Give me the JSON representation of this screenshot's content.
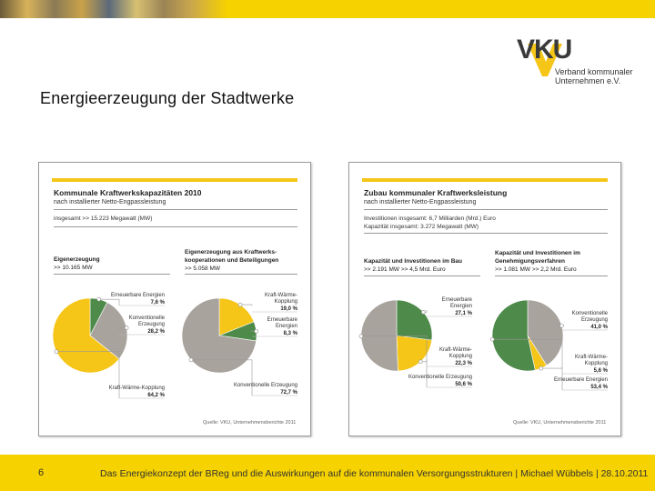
{
  "header": {
    "page_title": "Energieerzeugung der Stadtwerke"
  },
  "logo": {
    "mark": "VKU",
    "line1": "Verband kommunaler",
    "line2": "Unternehmen e.V."
  },
  "footer": {
    "slide_number": "6",
    "text": "Das Energiekonzept der BReg und die Auswirkungen auf die kommunalen Versorgungsstrukturen | Michael Wübbels | 28.10.2011"
  },
  "colors": {
    "green": "#4e8a4a",
    "gray": "#a8a39d",
    "yellow": "#f5c518",
    "accent": "#f6d200"
  },
  "left_panel": {
    "title": "Kommunale Kraftwerkskapazitäten 2010",
    "subtitle": "nach installierter Netto-Engpassleistung",
    "total": "insgesamt >> 15.223 Megawatt (MW)",
    "sec1_title": "Eigenerzeugung",
    "sec1_value": ">> 10.165 MW",
    "sec2_title1": "Eigenerzeugung aus Kraftwerks-",
    "sec2_title2": "kooperationen und Beteiligungen",
    "sec2_value": ">> 5.058 MW",
    "source": "Quelle: VKU, Unternehmensberichte 2011"
  },
  "right_panel": {
    "title": "Zubau kommunaler Kraftwerksleistung",
    "subtitle": "nach installierter Netto-Engpassleistung",
    "total1": "Investitionen insgesamt: 6,7 Milliarden (Mrd.) Euro",
    "total2": "Kapazität insgesamt: 3.272 Megawatt (MW)",
    "sec1_title": "Kapazität und Investitionen im Bau",
    "sec1_value": ">> 2.191 MW >> 4,5 Mrd. Euro",
    "sec2_title1": "Kapazität und Investitionen im",
    "sec2_title2": "Genehmigungsverfahren",
    "sec2_value": ">> 1.081 MW >> 2,2 Mrd. Euro",
    "source": "Quelle: VKU, Unternehmensberichte 2011"
  },
  "chart_data": [
    {
      "type": "pie",
      "title": "Eigenerzeugung",
      "slices": [
        {
          "name": "Erneuerbare Energien",
          "value": 7.6,
          "label": "7,6 %",
          "label_lines": [
            "Erneuerbare Energien"
          ]
        },
        {
          "name": "Konventionelle Erzeugung",
          "value": 28.2,
          "label": "28,2 %",
          "label_lines": [
            "Konventionelle",
            "Erzeugung"
          ]
        },
        {
          "name": "Kraft-Wärme-Kopplung",
          "value": 64.2,
          "label": "64,2 %",
          "label_lines": [
            "Kraft-Wärme-Kopplung"
          ]
        }
      ]
    },
    {
      "type": "pie",
      "title": "Eigenerzeugung aus Kraftwerkskooperationen und Beteiligungen",
      "slices": [
        {
          "name": "Kraft-Wärme-Kopplung",
          "value": 19.0,
          "label": "19,0 %",
          "label_lines": [
            "Kraft-Wärme-",
            "Kopplung"
          ]
        },
        {
          "name": "Erneuerbare Energien",
          "value": 8.3,
          "label": "8,3 %",
          "label_lines": [
            "Erneuerbare",
            "Energien"
          ]
        },
        {
          "name": "Konventionelle Erzeugung",
          "value": 72.7,
          "label": "72,7 %",
          "label_lines": [
            "Konventionelle Erzeugung"
          ]
        }
      ]
    },
    {
      "type": "pie",
      "title": "Kapazität und Investitionen im Bau",
      "slices": [
        {
          "name": "Erneuerbare Energien",
          "value": 27.1,
          "label": "27,1 %",
          "label_lines": [
            "Erneuerbare",
            "Energien"
          ]
        },
        {
          "name": "Kraft-Wärme-Kopplung",
          "value": 22.3,
          "label": "22,3 %",
          "label_lines": [
            "Kraft-Wärme-",
            "Kopplung"
          ]
        },
        {
          "name": "Konventionelle Erzeugung",
          "value": 50.6,
          "label": "50,6 %",
          "label_lines": [
            "Konventionelle Erzeugung"
          ]
        }
      ]
    },
    {
      "type": "pie",
      "title": "Kapazität und Investitionen im Genehmigungsverfahren",
      "slices": [
        {
          "name": "Konventionelle Erzeugung",
          "value": 41.0,
          "label": "41,0 %",
          "label_lines": [
            "Konventionelle",
            "Erzeugung"
          ]
        },
        {
          "name": "Kraft-Wärme-Kopplung",
          "value": 5.6,
          "label": "5,6 %",
          "label_lines": [
            "Kraft-Wärme-",
            "Kopplung"
          ]
        },
        {
          "name": "Erneuerbare Energien",
          "value": 53.4,
          "label": "53,4 %",
          "label_lines": [
            "Erneuerbare Energien"
          ]
        }
      ]
    }
  ]
}
